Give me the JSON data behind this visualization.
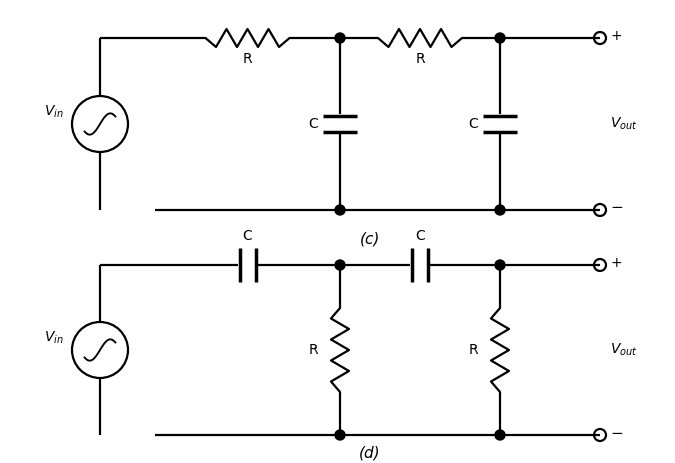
{
  "fig_width": 6.75,
  "fig_height": 4.63,
  "dpi": 100,
  "bg_color": "#ffffff",
  "line_color": "#000000",
  "label_color": "#4a4a4a",
  "line_width": 1.6,
  "font_size": 10,
  "c_label": "(c)",
  "d_label": "(d)",
  "vin_label": "V_{in}",
  "vout_label": "V_{out}",
  "R_label": "R",
  "C_label": "C",
  "plus": "+",
  "minus": "−"
}
